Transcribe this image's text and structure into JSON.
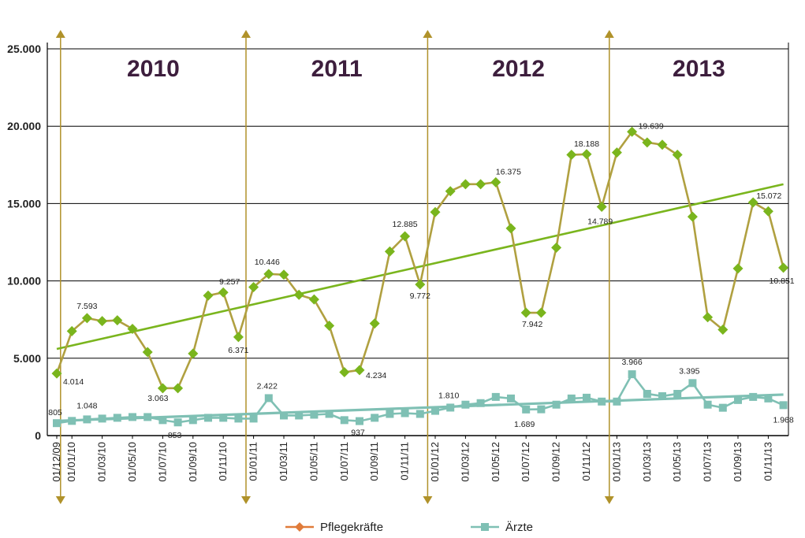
{
  "chart_data": {
    "type": "line",
    "ylim": [
      0,
      25000
    ],
    "yticks": [
      {
        "value": 0,
        "label": "0"
      },
      {
        "value": 5000,
        "label": "5.000"
      },
      {
        "value": 10000,
        "label": "10.000"
      },
      {
        "value": 15000,
        "label": "15.000"
      },
      {
        "value": 20000,
        "label": "20.000"
      },
      {
        "value": 25000,
        "label": "25.000"
      }
    ],
    "grid": true,
    "x": [
      "01/12/09",
      "01/01/10",
      "01/02/10",
      "01/03/10",
      "01/04/10",
      "01/05/10",
      "01/06/10",
      "01/07/10",
      "01/08/10",
      "01/09/10",
      "01/10/10",
      "01/11/10",
      "01/12/10",
      "01/01/11",
      "01/02/11",
      "01/03/11",
      "01/04/11",
      "01/05/11",
      "01/06/11",
      "01/07/11",
      "01/08/11",
      "01/09/11",
      "01/10/11",
      "01/11/11",
      "01/12/11",
      "01/01/12",
      "01/02/12",
      "01/03/12",
      "01/04/12",
      "01/05/12",
      "01/06/12",
      "01/07/12",
      "01/08/12",
      "01/09/12",
      "01/10/12",
      "01/11/12",
      "01/12/12",
      "01/01/13",
      "01/02/13",
      "01/03/13",
      "01/04/13",
      "01/05/13",
      "01/06/13",
      "01/07/13",
      "01/08/13",
      "01/09/13",
      "01/10/13",
      "01/11/13",
      "01/12/13"
    ],
    "x_tick_labels": [
      "01/12/09",
      "01/01/10",
      "01/03/10",
      "01/05/10",
      "01/07/10",
      "01/09/10",
      "01/11/10",
      "01/01/11",
      "01/03/11",
      "01/05/11",
      "01/07/11",
      "01/09/11",
      "01/11/11",
      "01/01/12",
      "01/03/12",
      "01/05/12",
      "01/07/12",
      "01/09/12",
      "01/11/12",
      "01/01/13",
      "01/03/13",
      "01/05/13",
      "01/07/13",
      "01/09/13",
      "01/11/13"
    ],
    "years": [
      {
        "label": "2010",
        "marker_index": 0.25
      },
      {
        "label": "2011",
        "marker_index": 12.5
      },
      {
        "label": "2012",
        "marker_index": 24.5
      },
      {
        "label": "2013",
        "marker_index": 36.5
      }
    ],
    "series": [
      {
        "name": "Pflegekräfte",
        "legend_color": "#e07b39",
        "line_color": "#b0a040",
        "marker_color": "#7ab51d",
        "values": [
          4014,
          6750,
          7593,
          7400,
          7450,
          6900,
          5400,
          3063,
          3063,
          5300,
          9050,
          9257,
          6371,
          9600,
          10446,
          10400,
          9100,
          8800,
          7100,
          4100,
          4234,
          7250,
          11900,
          12885,
          9772,
          14450,
          15800,
          16250,
          16250,
          16375,
          13400,
          7942,
          7942,
          12150,
          18150,
          18188,
          14789,
          18300,
          19639,
          18950,
          18800,
          18150,
          14150,
          7650,
          6850,
          10800,
          15072,
          14500,
          10851
        ],
        "labels": [
          {
            "index": 0,
            "text": "4.014"
          },
          {
            "index": 2,
            "text": "7.593"
          },
          {
            "index": 7,
            "text": "3.063"
          },
          {
            "index": 11,
            "text": "9.257"
          },
          {
            "index": 12,
            "text": "6.371"
          },
          {
            "index": 14,
            "text": "10.446"
          },
          {
            "index": 20,
            "text": "4.234"
          },
          {
            "index": 23,
            "text": "12.885"
          },
          {
            "index": 24,
            "text": "9.772"
          },
          {
            "index": 29,
            "text": "16.375"
          },
          {
            "index": 31,
            "text": "7.942"
          },
          {
            "index": 35,
            "text": "18.188"
          },
          {
            "index": 36,
            "text": "14.789"
          },
          {
            "index": 38,
            "text": "19.639"
          },
          {
            "index": 46,
            "text": "15.072"
          },
          {
            "index": 48,
            "text": "10.851"
          }
        ],
        "trend": [
          5600,
          16250
        ],
        "trend_color": "#7ab51d"
      },
      {
        "name": "Ärzte",
        "legend_color": "#7fc0b4",
        "line_color": "#7fc0b4",
        "marker_color": "#7fc0b4",
        "values": [
          805,
          950,
          1048,
          1100,
          1150,
          1200,
          1200,
          1000,
          853,
          1000,
          1150,
          1150,
          1100,
          1100,
          2422,
          1300,
          1300,
          1350,
          1400,
          1000,
          937,
          1150,
          1400,
          1450,
          1400,
          1600,
          1810,
          2000,
          2100,
          2500,
          2400,
          1689,
          1700,
          2000,
          2400,
          2450,
          2200,
          2200,
          3966,
          2700,
          2550,
          2700,
          3395,
          2000,
          1800,
          2300,
          2500,
          2400,
          1968
        ],
        "labels": [
          {
            "index": 0,
            "text": "805"
          },
          {
            "index": 2,
            "text": "1.048"
          },
          {
            "index": 8,
            "text": "853"
          },
          {
            "index": 14,
            "text": "2.422"
          },
          {
            "index": 20,
            "text": "937"
          },
          {
            "index": 26,
            "text": "1.810"
          },
          {
            "index": 31,
            "text": "1.689"
          },
          {
            "index": 38,
            "text": "3.966"
          },
          {
            "index": 42,
            "text": "3.395"
          },
          {
            "index": 48,
            "text": "1.968"
          }
        ],
        "trend": [
          950,
          2650
        ],
        "trend_color": "#7fc0b4"
      }
    ],
    "legend": {
      "placement": "bottom-center"
    },
    "vertical_marker_color": "#b0922a"
  }
}
